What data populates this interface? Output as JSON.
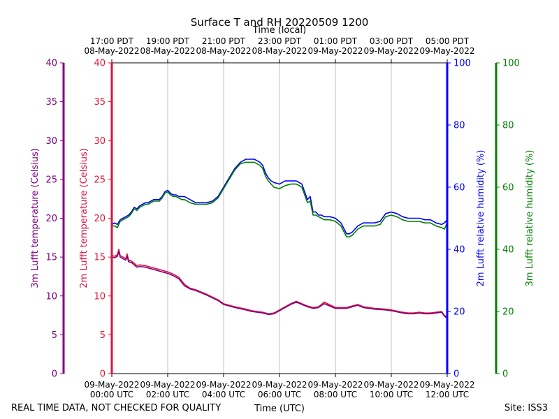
{
  "chart_data": {
    "type": "line",
    "title": "Surface T and RH 20220509 1200",
    "top_axis_title": "Time (local)",
    "bottom_axis_title": "Time (UTC)",
    "footer_left": "REAL TIME DATA, NOT CHECKED FOR QUALITY",
    "footer_right": "Site: ISS3",
    "x_range_hours": [
      0,
      12
    ],
    "x_ticks": [
      {
        "h": 0,
        "utc": [
          "09-May-2022",
          "00:00 UTC"
        ],
        "local": [
          "17:00 PDT",
          "08-May-2022"
        ]
      },
      {
        "h": 2,
        "utc": [
          "09-May-2022",
          "02:00 UTC"
        ],
        "local": [
          "19:00 PDT",
          "08-May-2022"
        ]
      },
      {
        "h": 4,
        "utc": [
          "09-May-2022",
          "04:00 UTC"
        ],
        "local": [
          "21:00 PDT",
          "08-May-2022"
        ]
      },
      {
        "h": 6,
        "utc": [
          "09-May-2022",
          "06:00 UTC"
        ],
        "local": [
          "23:00 PDT",
          "08-May-2022"
        ]
      },
      {
        "h": 8,
        "utc": [
          "09-May-2022",
          "08:00 UTC"
        ],
        "local": [
          "01:00 PDT",
          "09-May-2022"
        ]
      },
      {
        "h": 10,
        "utc": [
          "09-May-2022",
          "10:00 UTC"
        ],
        "local": [
          "03:00 PDT",
          "09-May-2022"
        ]
      },
      {
        "h": 12,
        "utc": [
          "09-May-2022",
          "12:00 UTC"
        ],
        "local": [
          "05:00 PDT",
          "09-May-2022"
        ]
      }
    ],
    "axes": {
      "t3m": {
        "label": "3m Lufft temperature (Celsius)",
        "color": "#800080",
        "ylim": [
          0,
          40
        ],
        "ticks": [
          "0",
          "5",
          "10",
          "15",
          "20",
          "25",
          "30",
          "35",
          "40"
        ]
      },
      "t2m": {
        "label": "2m Lufft temperature (Celsius)",
        "color": "#dc143c",
        "ylim": [
          0,
          40
        ],
        "ticks": [
          "0",
          "5",
          "10",
          "15",
          "20",
          "25",
          "30",
          "35",
          "40"
        ]
      },
      "rh2m": {
        "label": "2m Lufft relative humidity (%)",
        "color": "#0000ff",
        "ylim": [
          0,
          100
        ],
        "ticks": [
          "0",
          "20",
          "40",
          "60",
          "80",
          "100"
        ]
      },
      "rh3m": {
        "label": "3m Lufft relative humidity (%)",
        "color": "#008000",
        "ylim": [
          0,
          100
        ],
        "ticks": [
          "0",
          "20",
          "40",
          "60",
          "80",
          "100"
        ]
      }
    },
    "series": [
      {
        "name": "2m Lufft relative humidity",
        "axis": "rh2m",
        "color": "#0000ff",
        "x": [
          0,
          0.1,
          0.2,
          0.3,
          0.4,
          0.5,
          0.6,
          0.7,
          0.8,
          0.9,
          1.0,
          1.1,
          1.2,
          1.3,
          1.4,
          1.5,
          1.6,
          1.7,
          1.8,
          1.9,
          2.0,
          2.1,
          2.2,
          2.3,
          2.4,
          2.5,
          2.6,
          2.8,
          3.0,
          3.2,
          3.4,
          3.6,
          3.8,
          4.0,
          4.2,
          4.4,
          4.6,
          4.8,
          5.0,
          5.1,
          5.2,
          5.3,
          5.4,
          5.5,
          5.6,
          5.7,
          5.8,
          6.0,
          6.1,
          6.2,
          6.4,
          6.6,
          6.8,
          7.0,
          7.1,
          7.2,
          7.3,
          7.4,
          7.5,
          7.6,
          7.8,
          8.0,
          8.2,
          8.4,
          8.5,
          8.6,
          8.8,
          9.0,
          9.2,
          9.4,
          9.6,
          9.8,
          10.0,
          10.2,
          10.4,
          10.6,
          10.8,
          11.0,
          11.2,
          11.4,
          11.6,
          11.8,
          11.9,
          12.0
        ],
        "values": [
          48,
          48.5,
          48,
          49.5,
          50,
          50.5,
          51,
          52,
          53.5,
          53,
          54,
          54.5,
          55,
          55,
          55.5,
          56,
          56,
          56,
          57,
          58.5,
          59,
          58,
          57.5,
          57.5,
          57,
          57,
          57,
          56,
          55,
          55,
          55,
          55.5,
          57,
          60,
          63,
          66,
          68,
          69,
          69,
          69,
          68.5,
          68,
          67,
          64.5,
          63,
          62,
          61.5,
          61,
          61.5,
          62,
          62,
          62,
          61,
          56,
          57,
          52,
          52,
          51,
          51,
          50.5,
          50.5,
          50,
          48.5,
          45,
          45,
          45.5,
          47.5,
          48.5,
          48.5,
          48.5,
          49,
          51.5,
          52,
          51.5,
          50.5,
          50,
          50,
          50,
          49.5,
          49.5,
          48.5,
          48,
          48.5,
          49.5
        ]
      },
      {
        "name": "3m Lufft relative humidity",
        "axis": "rh3m",
        "color": "#008000",
        "x": [
          0,
          0.1,
          0.2,
          0.3,
          0.4,
          0.5,
          0.6,
          0.7,
          0.8,
          0.9,
          1.0,
          1.1,
          1.2,
          1.3,
          1.4,
          1.5,
          1.6,
          1.7,
          1.8,
          1.9,
          2.0,
          2.1,
          2.2,
          2.3,
          2.4,
          2.5,
          2.6,
          2.8,
          3.0,
          3.2,
          3.4,
          3.6,
          3.8,
          4.0,
          4.2,
          4.4,
          4.6,
          4.8,
          5.0,
          5.1,
          5.2,
          5.3,
          5.4,
          5.5,
          5.6,
          5.7,
          5.8,
          6.0,
          6.1,
          6.2,
          6.4,
          6.6,
          6.8,
          7.0,
          7.1,
          7.2,
          7.3,
          7.4,
          7.5,
          7.6,
          7.8,
          8.0,
          8.2,
          8.4,
          8.5,
          8.6,
          8.8,
          9.0,
          9.2,
          9.4,
          9.6,
          9.8,
          10.0,
          10.2,
          10.4,
          10.6,
          10.8,
          11.0,
          11.2,
          11.4,
          11.6,
          11.8,
          11.9,
          12.0
        ],
        "values": [
          47.5,
          47.5,
          47,
          49,
          49.5,
          50,
          50.5,
          51.5,
          53,
          52.5,
          53.5,
          54,
          54.5,
          54.5,
          55,
          55.5,
          55.5,
          55.5,
          56.5,
          58,
          58.5,
          57.5,
          57,
          57,
          56.5,
          56,
          56,
          55,
          54.5,
          54.5,
          54.5,
          55,
          56.5,
          59.5,
          62.5,
          65.5,
          67.5,
          68,
          68,
          68,
          67.5,
          67,
          66,
          63.5,
          62,
          61,
          60,
          59.5,
          60,
          60.5,
          61,
          61,
          60,
          55,
          55.5,
          51,
          51,
          50.5,
          50,
          49.5,
          49.5,
          49,
          47.5,
          44,
          44,
          44.5,
          46.5,
          47.5,
          47.5,
          47.5,
          48,
          50.5,
          51,
          50.5,
          49.5,
          49,
          49,
          49,
          48.5,
          48.5,
          47.5,
          47,
          46.5,
          48.5
        ]
      },
      {
        "name": "2m Lufft temperature",
        "axis": "t2m",
        "color": "#dc143c",
        "x": [
          0,
          0.1,
          0.2,
          0.25,
          0.3,
          0.4,
          0.5,
          0.55,
          0.6,
          0.7,
          0.8,
          0.9,
          1.0,
          1.2,
          1.4,
          1.6,
          1.8,
          2.0,
          2.2,
          2.4,
          2.6,
          2.8,
          3.0,
          3.4,
          3.8,
          4.0,
          4.4,
          4.8,
          5.0,
          5.2,
          5.4,
          5.6,
          5.8,
          6.0,
          6.2,
          6.4,
          6.6,
          6.8,
          7.0,
          7.1,
          7.2,
          7.4,
          7.6,
          8.0,
          8.4,
          8.6,
          8.8,
          9.0,
          9.4,
          9.8,
          10.0,
          10.4,
          10.6,
          10.8,
          11.0,
          11.2,
          11.4,
          11.6,
          11.8,
          11.9,
          12.0
        ],
        "values": [
          15.2,
          15.1,
          15.3,
          16,
          15.2,
          15,
          14.8,
          15.4,
          14.6,
          14.5,
          14.2,
          13.9,
          14,
          13.9,
          13.7,
          13.5,
          13.3,
          13.1,
          12.8,
          12.4,
          11.5,
          11,
          10.8,
          10.2,
          9.5,
          9,
          8.6,
          8.3,
          8.1,
          8,
          7.9,
          7.7,
          7.8,
          8.2,
          8.6,
          9,
          9.3,
          9,
          8.7,
          8.6,
          8.5,
          8.6,
          9.2,
          8.5,
          8.5,
          8.7,
          8.9,
          8.6,
          8.4,
          8.3,
          8.2,
          7.9,
          7.8,
          7.8,
          7.9,
          7.8,
          7.8,
          7.9,
          8,
          7.5,
          7.3
        ]
      },
      {
        "name": "3m Lufft temperature",
        "axis": "t3m",
        "color": "#800080",
        "x": [
          0,
          0.1,
          0.2,
          0.25,
          0.3,
          0.4,
          0.5,
          0.55,
          0.6,
          0.7,
          0.8,
          0.9,
          1.0,
          1.2,
          1.4,
          1.6,
          1.8,
          2.0,
          2.2,
          2.4,
          2.6,
          2.8,
          3.0,
          3.4,
          3.8,
          4.0,
          4.4,
          4.8,
          5.0,
          5.2,
          5.4,
          5.6,
          5.8,
          6.0,
          6.2,
          6.4,
          6.6,
          6.8,
          7.0,
          7.1,
          7.2,
          7.4,
          7.6,
          8.0,
          8.4,
          8.6,
          8.8,
          9.0,
          9.4,
          9.8,
          10.0,
          10.4,
          10.6,
          10.8,
          11.0,
          11.2,
          11.4,
          11.6,
          11.8,
          11.9,
          12.0
        ],
        "values": [
          15,
          14.9,
          15.1,
          15.7,
          15,
          14.8,
          14.6,
          15.1,
          14.4,
          14.3,
          14,
          13.7,
          13.8,
          13.7,
          13.5,
          13.3,
          13.1,
          12.9,
          12.6,
          12.2,
          11.3,
          10.9,
          10.7,
          10.1,
          9.4,
          8.9,
          8.5,
          8.2,
          8,
          7.9,
          7.8,
          7.6,
          7.7,
          8.1,
          8.5,
          8.9,
          9.2,
          8.9,
          8.6,
          8.5,
          8.4,
          8.5,
          9,
          8.4,
          8.4,
          8.6,
          8.8,
          8.5,
          8.3,
          8.2,
          8.1,
          7.8,
          7.7,
          7.7,
          7.8,
          7.7,
          7.7,
          7.8,
          7.9,
          7.4,
          7.1
        ]
      }
    ]
  }
}
